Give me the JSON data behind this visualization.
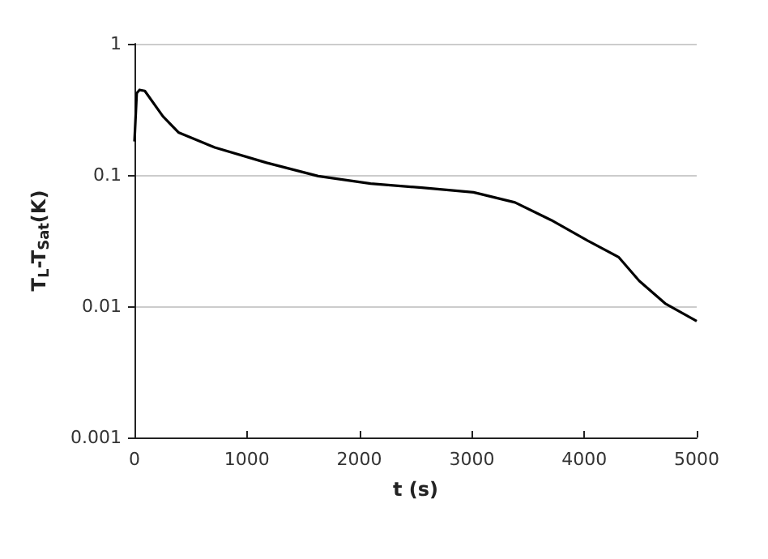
{
  "chart_data": {
    "type": "line",
    "xlabel": "t (s)",
    "ylabel": "T$_{L}$-T$_{Sat}$(K)",
    "log": "y",
    "grid": "y",
    "marker": "none",
    "line_style": "solid",
    "xlim": [
      0,
      5000
    ],
    "xticks": [
      0,
      1000,
      2000,
      3000,
      4000,
      5000
    ],
    "ylim": [
      0.001,
      1
    ],
    "yticks": [
      0.001,
      0.01,
      0.1,
      1
    ],
    "series": [
      {
        "color": "#000000",
        "x": [
          0,
          20,
          45,
          92,
          253,
          391,
          714,
          1174,
          1634,
          2100,
          2555,
          3015,
          3384,
          3706,
          4028,
          4305,
          4489,
          4719,
          5000
        ],
        "values": [
          0.18,
          0.42,
          0.445,
          0.437,
          0.28,
          0.211,
          0.162,
          0.124,
          0.098,
          0.086,
          0.08,
          0.0738,
          0.0618,
          0.0453,
          0.0317,
          0.0237,
          0.0156,
          0.0105,
          0.0077
        ]
      }
    ]
  }
}
